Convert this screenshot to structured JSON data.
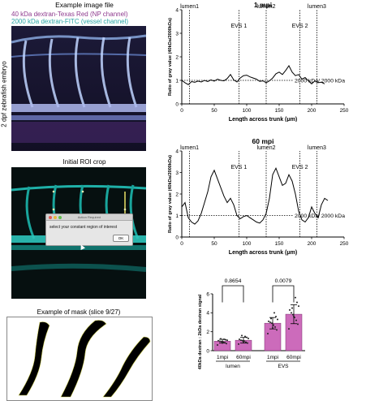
{
  "left_panel": {
    "example_title": "Example image file",
    "legend_np": "40 kDa dextran-Texas Red (NP channel)",
    "legend_vessel": "2000 kDa dextran-FITC (vessel channel)",
    "embryo_label": "2 dpf zebrafish embryo",
    "roi_title": "Initial ROI crop",
    "dialog": {
      "title": "Action Required",
      "message": "select your constant region of interest",
      "ok_label": "OK"
    },
    "mask_title": "Example of mask (slice 9/27)",
    "colors": {
      "np": "#8e3a8e",
      "vessel": "#2aa5a5"
    }
  },
  "chart_data": [
    {
      "type": "line",
      "title": "1 mpi",
      "xlabel": "Length across trunk (μm)",
      "ylabel": "Ratio of gray value (40kDa/2000kDa)",
      "xlim": [
        0,
        250
      ],
      "ylim": [
        0,
        4
      ],
      "xticks": [
        "0",
        "50",
        "100",
        "150",
        "200",
        "250"
      ],
      "yticks": [
        "0",
        "1",
        "2",
        "3",
        "4"
      ],
      "reference_line": {
        "y": 1,
        "label": "2000 kDa/ 2000 kDa"
      },
      "region_markers": [
        {
          "label": "lumen1",
          "x": 12
        },
        {
          "label": "EVS 1",
          "x": 88
        },
        {
          "label": "lumen2",
          "x": 130
        },
        {
          "label": "EVS 2",
          "x": 182
        },
        {
          "label": "lumen3",
          "x": 208
        }
      ],
      "series": [
        {
          "x": [
            0,
            5,
            10,
            15,
            20,
            25,
            30,
            35,
            40,
            45,
            50,
            55,
            60,
            65,
            70,
            75,
            80,
            85,
            90,
            95,
            100,
            105,
            110,
            115,
            120,
            125,
            130,
            135,
            140,
            145,
            150,
            155,
            160,
            165,
            170,
            175,
            180,
            185,
            190,
            195,
            200,
            205,
            210,
            215,
            220
          ],
          "values": [
            1.0,
            0.9,
            0.82,
            0.95,
            0.92,
            0.97,
            0.93,
            1.0,
            0.95,
            1.02,
            0.97,
            1.05,
            1.0,
            0.98,
            1.08,
            1.25,
            1.02,
            0.93,
            1.1,
            1.2,
            1.22,
            1.15,
            1.1,
            1.05,
            0.96,
            0.98,
            0.9,
            0.98,
            1.1,
            1.28,
            1.35,
            1.25,
            1.42,
            1.62,
            1.35,
            1.2,
            1.25,
            1.05,
            1.12,
            0.98,
            0.85,
            0.98,
            0.9,
            0.92,
            0.85
          ]
        }
      ]
    },
    {
      "type": "line",
      "title": "60 mpi",
      "xlabel": "Length across trunk (μm)",
      "ylabel": "Ratio of gray value (40kDa/2000kDa)",
      "xlim": [
        0,
        250
      ],
      "ylim": [
        0,
        4
      ],
      "xticks": [
        "0",
        "50",
        "100",
        "150",
        "200",
        "250"
      ],
      "yticks": [
        "0",
        "1",
        "2",
        "3",
        "4"
      ],
      "reference_line": {
        "y": 1,
        "label": "2000 kDa/ 2000 kDa"
      },
      "region_markers": [
        {
          "label": "lumen1",
          "x": 12
        },
        {
          "label": "EVS 1",
          "x": 88
        },
        {
          "label": "lumen2",
          "x": 130
        },
        {
          "label": "EVS 2",
          "x": 182
        },
        {
          "label": "lumen3",
          "x": 208
        }
      ],
      "series": [
        {
          "x": [
            0,
            5,
            10,
            15,
            20,
            25,
            30,
            35,
            40,
            45,
            50,
            55,
            60,
            65,
            70,
            75,
            80,
            85,
            90,
            95,
            100,
            105,
            110,
            115,
            120,
            125,
            130,
            135,
            140,
            145,
            150,
            155,
            160,
            165,
            170,
            175,
            180,
            185,
            190,
            195,
            200,
            205,
            210,
            215,
            220,
            225
          ],
          "values": [
            1.4,
            1.6,
            0.9,
            0.7,
            0.6,
            0.75,
            1.1,
            1.6,
            2.1,
            2.8,
            3.1,
            2.7,
            2.3,
            1.9,
            1.6,
            1.8,
            1.5,
            1.0,
            0.85,
            0.95,
            1.0,
            0.9,
            0.8,
            0.7,
            0.65,
            0.8,
            1.1,
            1.8,
            2.9,
            3.2,
            2.8,
            2.4,
            2.5,
            2.9,
            2.6,
            2.0,
            1.2,
            0.8,
            0.7,
            0.9,
            1.4,
            1.1,
            0.9,
            1.5,
            1.8,
            1.7
          ]
        }
      ]
    },
    {
      "type": "bar",
      "ylabel": "40kDa dextran : 2kDa dextran signal",
      "ylim": [
        0,
        6
      ],
      "yticks": [
        "0",
        "2",
        "4",
        "6"
      ],
      "categories": [
        "1mpi",
        "60mpi",
        "1mpi",
        "60mpi"
      ],
      "groups": [
        "lumen",
        "EVS"
      ],
      "values": [
        1.0,
        1.1,
        2.9,
        3.85
      ],
      "errors": [
        0.2,
        0.3,
        0.6,
        1.0
      ],
      "colors": [
        "#c75bb4",
        "#c75bb4",
        "#c75bb4",
        "#c75bb4"
      ],
      "points": [
        [
          0.6,
          0.75,
          0.85,
          0.9,
          0.95,
          1.0,
          1.05,
          1.1,
          1.15,
          1.2,
          0.8,
          1.25
        ],
        [
          0.7,
          0.8,
          0.9,
          1.0,
          1.05,
          1.1,
          1.2,
          1.3,
          1.4,
          1.5,
          0.95,
          1.6
        ],
        [
          1.8,
          2.2,
          2.5,
          2.7,
          2.9,
          3.0,
          3.1,
          3.3,
          3.6,
          4.0,
          2.4,
          3.4
        ],
        [
          2.3,
          2.8,
          3.2,
          3.5,
          3.8,
          4.0,
          4.3,
          4.7,
          5.1,
          5.6,
          3.6,
          4.5
        ]
      ],
      "comparisons": [
        {
          "label": "0.8654",
          "from": 0,
          "to": 1
        },
        {
          "label": "0.0079",
          "from": 2,
          "to": 3
        }
      ]
    }
  ]
}
